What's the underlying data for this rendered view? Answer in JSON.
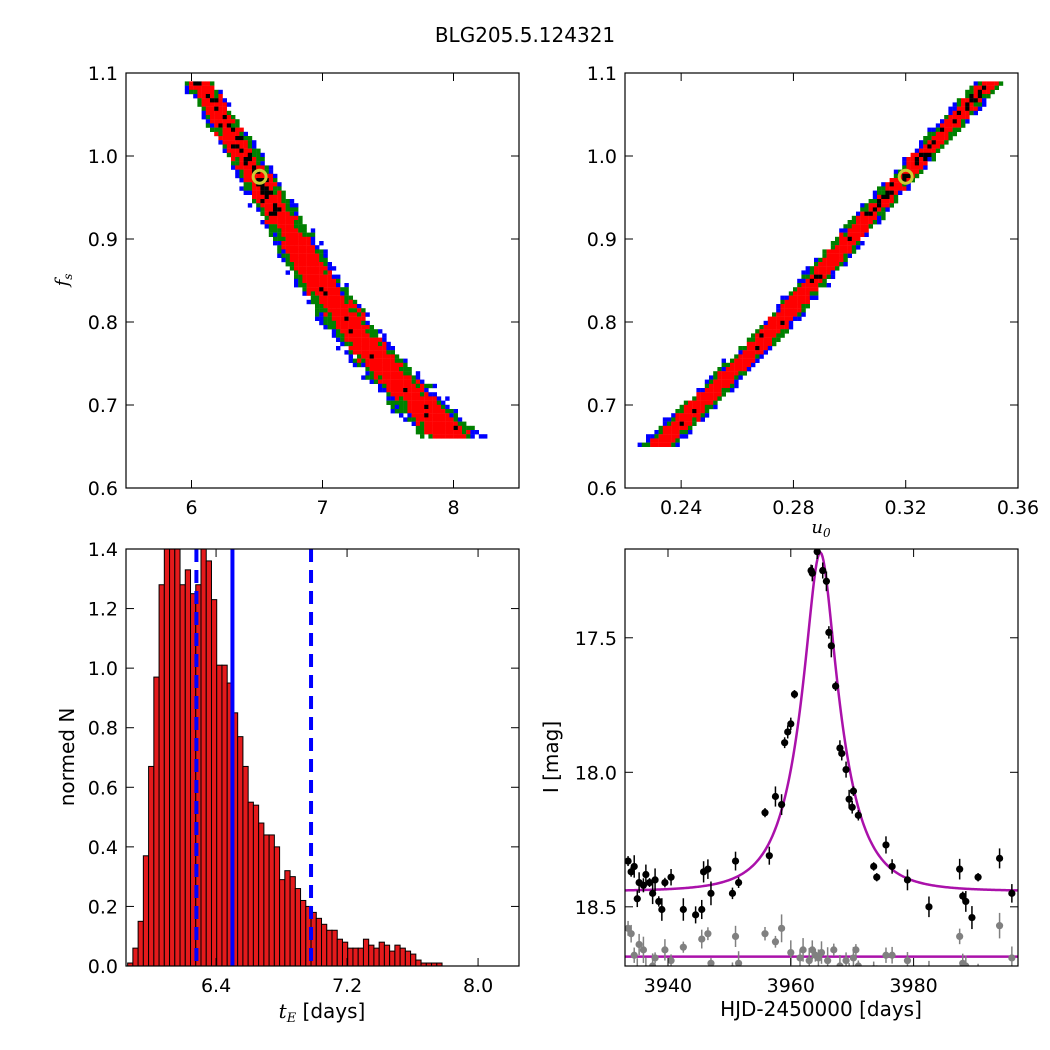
{
  "figure": {
    "title": "BLG205.5.124321"
  },
  "colors": {
    "density_outer": "#0000ff",
    "density_mid": "#008000",
    "density_inner": "#ff0000",
    "density_core": "#000000",
    "best_fit_marker": "#cccc33",
    "histogram_bar": "#e41a1c",
    "dashed_lines": "#0000ff",
    "model_curve": "#aa11aa",
    "data_black": "#000000",
    "data_grey": "#808080"
  },
  "chart_data": [
    {
      "id": "fs_vs_tE",
      "type": "heatmap",
      "xlabel": "",
      "ylabel": "f_s",
      "xlim": [
        5.5,
        8.5
      ],
      "ylim": [
        0.6,
        1.1
      ],
      "xticks": [
        "6",
        "7",
        "8"
      ],
      "yticks": [
        "0.6",
        "0.7",
        "0.8",
        "0.9",
        "1.0",
        "1.1"
      ],
      "ridge": [
        [
          6.05,
          1.09
        ],
        [
          6.5,
          0.975
        ],
        [
          7.0,
          0.84
        ],
        [
          7.5,
          0.74
        ],
        [
          8.0,
          0.66
        ]
      ],
      "best_fit": {
        "x": 6.52,
        "y": 0.975
      }
    },
    {
      "id": "fs_vs_u0",
      "type": "heatmap",
      "xlabel": "u_0",
      "ylabel": "",
      "xlim": [
        0.22,
        0.36
      ],
      "ylim": [
        0.6,
        1.1
      ],
      "xticks": [
        "0.24",
        "0.28",
        "0.32",
        "0.36"
      ],
      "yticks": [
        "0.6",
        "0.7",
        "0.8",
        "0.9",
        "1.0",
        "1.1"
      ],
      "ridge": [
        [
          0.231,
          0.648
        ],
        [
          0.27,
          0.78
        ],
        [
          0.31,
          0.94
        ],
        [
          0.35,
          1.09
        ]
      ],
      "best_fit": {
        "x": 0.32,
        "y": 0.975
      }
    },
    {
      "id": "tE_histogram",
      "type": "bar",
      "xlabel": "t_E  [days]",
      "ylabel": "normed N",
      "xlim": [
        5.85,
        8.25
      ],
      "ylim": [
        0.0,
        1.4
      ],
      "xticks": [
        "6.4",
        "7.2",
        "8.0"
      ],
      "yticks": [
        "0.0",
        "0.2",
        "0.4",
        "0.6",
        "0.8",
        "1.0",
        "1.2",
        "1.4"
      ],
      "bin_start": 5.86,
      "bin_width": 0.032,
      "values": [
        0.01,
        0.06,
        0.15,
        0.37,
        0.67,
        0.97,
        1.28,
        1.4,
        1.45,
        1.4,
        1.28,
        1.33,
        1.25,
        1.28,
        1.4,
        1.36,
        1.23,
        1.01,
        1.01,
        0.95,
        0.85,
        0.77,
        0.67,
        0.55,
        0.54,
        0.48,
        0.44,
        0.44,
        0.4,
        0.29,
        0.32,
        0.3,
        0.26,
        0.22,
        0.2,
        0.18,
        0.16,
        0.14,
        0.12,
        0.12,
        0.09,
        0.08,
        0.06,
        0.06,
        0.06,
        0.09,
        0.07,
        0.06,
        0.08,
        0.07,
        0.05,
        0.07,
        0.06,
        0.05,
        0.04,
        0.02,
        0.01,
        0.01,
        0.01,
        0.01
      ],
      "lines": [
        {
          "x": 6.28,
          "style": "dashed"
        },
        {
          "x": 6.5,
          "style": "solid"
        },
        {
          "x": 6.98,
          "style": "dashed"
        }
      ]
    },
    {
      "id": "light_curve",
      "type": "scatter",
      "xlabel": "HJD-2450000 [days]",
      "ylabel": "I [mag]",
      "xlim": [
        3933,
        3997
      ],
      "ylim": [
        18.72,
        17.17
      ],
      "xticks": [
        "3940",
        "3960",
        "3980"
      ],
      "yticks": [
        "17.5",
        "18.0",
        "18.5"
      ],
      "model": {
        "t0": 3964.8,
        "tE": 6.52,
        "u0": 0.32,
        "fs": 0.975,
        "base_mag": 18.442
      },
      "baseline_mag": 18.685,
      "series": [
        {
          "color": "black",
          "points": [
            [
              3933.5,
              18.33
            ],
            [
              3934.0,
              18.37
            ],
            [
              3934.5,
              18.35
            ],
            [
              3935.0,
              18.47
            ],
            [
              3935.3,
              18.41
            ],
            [
              3936.0,
              18.42
            ],
            [
              3936.4,
              18.38
            ],
            [
              3937.0,
              18.41
            ],
            [
              3937.5,
              18.45
            ],
            [
              3937.9,
              18.4
            ],
            [
              3938.5,
              18.48
            ],
            [
              3939.0,
              18.51
            ],
            [
              3939.5,
              18.41
            ],
            [
              3940.5,
              18.39
            ],
            [
              3942.5,
              18.51
            ],
            [
              3944.5,
              18.53
            ],
            [
              3945.5,
              18.51
            ],
            [
              3945.8,
              18.37
            ],
            [
              3946.5,
              18.36
            ],
            [
              3947.0,
              18.45
            ],
            [
              3950.5,
              18.45
            ],
            [
              3951.0,
              18.33
            ],
            [
              3951.5,
              18.41
            ],
            [
              3955.8,
              18.15
            ],
            [
              3956.5,
              18.31
            ],
            [
              3957.5,
              18.09
            ],
            [
              3958.5,
              18.12
            ],
            [
              3959.0,
              17.89
            ],
            [
              3959.5,
              17.85
            ],
            [
              3960.0,
              17.82
            ],
            [
              3960.6,
              17.71
            ],
            [
              3963.3,
              17.25
            ],
            [
              3963.5,
              17.26
            ],
            [
              3964.3,
              17.18
            ],
            [
              3965.2,
              17.25
            ],
            [
              3965.8,
              17.29
            ],
            [
              3966.2,
              17.48
            ],
            [
              3966.6,
              17.53
            ],
            [
              3967.3,
              17.68
            ],
            [
              3968.0,
              17.91
            ],
            [
              3968.3,
              17.93
            ],
            [
              3969.0,
              17.99
            ],
            [
              3969.5,
              18.1
            ],
            [
              3970.2,
              18.07
            ],
            [
              3970.0,
              18.13
            ],
            [
              3971.0,
              18.16
            ],
            [
              3973.5,
              18.35
            ],
            [
              3974.0,
              18.39
            ],
            [
              3975.5,
              18.27
            ],
            [
              3976.5,
              18.35
            ],
            [
              3979.0,
              18.4
            ],
            [
              3982.5,
              18.5
            ],
            [
              3987.5,
              18.36
            ],
            [
              3988.0,
              18.46
            ],
            [
              3988.5,
              18.48
            ],
            [
              3989.5,
              18.54
            ],
            [
              3990.5,
              18.39
            ],
            [
              3994.0,
              18.32
            ],
            [
              3996.0,
              18.45
            ]
          ]
        },
        {
          "color": "grey",
          "points": [
            [
              3933.5,
              18.58
            ],
            [
              3934.0,
              18.6
            ],
            [
              3934.5,
              18.68
            ],
            [
              3935.0,
              18.74
            ],
            [
              3935.3,
              18.64
            ],
            [
              3936.0,
              18.66
            ],
            [
              3936.4,
              18.73
            ],
            [
              3937.0,
              18.74
            ],
            [
              3937.5,
              18.72
            ],
            [
              3937.9,
              18.69
            ],
            [
              3938.5,
              18.78
            ],
            [
              3939.0,
              18.83
            ],
            [
              3939.5,
              18.66
            ],
            [
              3940.5,
              18.7
            ],
            [
              3942.5,
              18.65
            ],
            [
              3944.5,
              18.79
            ],
            [
              3945.5,
              18.62
            ],
            [
              3945.8,
              18.77
            ],
            [
              3946.5,
              18.6
            ],
            [
              3947.0,
              18.71
            ],
            [
              3950.5,
              18.73
            ],
            [
              3951.0,
              18.61
            ],
            [
              3951.5,
              18.71
            ],
            [
              3955.8,
              18.6
            ],
            [
              3956.5,
              18.77
            ],
            [
              3957.5,
              18.63
            ],
            [
              3958.5,
              18.58
            ],
            [
              3959.0,
              18.79
            ],
            [
              3960.0,
              18.67
            ],
            [
              3961.5,
              18.69
            ],
            [
              3962.0,
              18.66
            ],
            [
              3963.0,
              18.7
            ],
            [
              3963.5,
              18.66
            ],
            [
              3964.0,
              18.68
            ],
            [
              3964.5,
              18.69
            ],
            [
              3965.0,
              18.67
            ],
            [
              3966.0,
              18.7
            ],
            [
              3967.0,
              18.66
            ],
            [
              3968.0,
              18.72
            ],
            [
              3969.0,
              18.7
            ],
            [
              3969.5,
              18.74
            ],
            [
              3970.2,
              18.69
            ],
            [
              3970.6,
              18.66
            ],
            [
              3971.0,
              18.72
            ],
            [
              3973.5,
              18.73
            ],
            [
              3974.0,
              18.75
            ],
            [
              3975.5,
              18.68
            ],
            [
              3976.5,
              18.68
            ],
            [
              3979.0,
              18.7
            ],
            [
              3982.5,
              18.74
            ],
            [
              3987.5,
              18.61
            ],
            [
              3988.0,
              18.71
            ],
            [
              3988.5,
              18.72
            ],
            [
              3990.5,
              18.75
            ],
            [
              3994.0,
              18.57
            ],
            [
              3996.0,
              18.69
            ]
          ]
        }
      ]
    }
  ]
}
